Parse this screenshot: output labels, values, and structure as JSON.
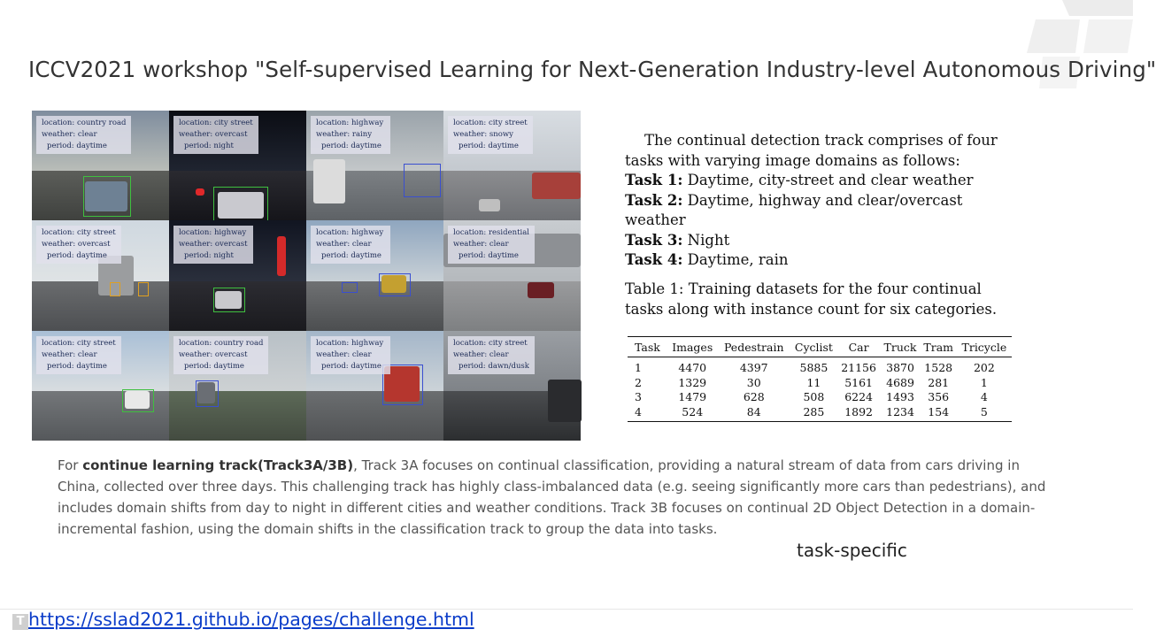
{
  "title": "ICCV2021 workshop \"Self-supervised Learning for Next-Generation Industry-level Autonomous Driving\"",
  "grid_tiles": [
    {
      "location": "location: country road",
      "weather": "weather: clear",
      "period": "period: daytime"
    },
    {
      "location": "location: city street",
      "weather": "weather: overcast",
      "period": "period: night"
    },
    {
      "location": "location: highway",
      "weather": "weather: rainy",
      "period": "period: daytime"
    },
    {
      "location": "location: city street",
      "weather": "weather: snowy",
      "period": "period: daytime"
    },
    {
      "location": "location: city street",
      "weather": "weather: overcast",
      "period": "period: daytime"
    },
    {
      "location": "location: highway",
      "weather": "weather: overcast",
      "period": "period: night"
    },
    {
      "location": "location: highway",
      "weather": "weather: clear",
      "period": "period: daytime"
    },
    {
      "location": "location: residential",
      "weather": "weather: clear",
      "period": "period: daytime"
    },
    {
      "location": "location: city street",
      "weather": "weather: clear",
      "period": "period: daytime"
    },
    {
      "location": "location: country road",
      "weather": "weather: overcast",
      "period": "period: daytime"
    },
    {
      "location": "location: highway",
      "weather": "weather: clear",
      "period": "period: daytime"
    },
    {
      "location": "location: city street",
      "weather": "weather: clear",
      "period": "period: dawn/dusk"
    }
  ],
  "description": {
    "intro": "The continual detection track comprises of four tasks with varying image domains as follows:",
    "tasks": [
      {
        "label": "Task 1:",
        "text": " Daytime, city-street and clear weather"
      },
      {
        "label": "Task 2:",
        "text": " Daytime, highway and clear/overcast weather"
      },
      {
        "label": "Task 3:",
        "text": " Night"
      },
      {
        "label": "Task 4:",
        "text": " Daytime, rain"
      }
    ]
  },
  "table_caption": "Table 1: Training datasets for the four continual tasks along with instance count for six categories.",
  "table": {
    "headers": [
      "Task",
      "Images",
      "Pedestrain",
      "Cyclist",
      "Car",
      "Truck",
      "Tram",
      "Tricycle"
    ],
    "rows": [
      [
        "1",
        "4470",
        "4397",
        "5885",
        "21156",
        "3870",
        "1528",
        "202"
      ],
      [
        "2",
        "1329",
        "30",
        "11",
        "5161",
        "4689",
        "281",
        "1"
      ],
      [
        "3",
        "1479",
        "628",
        "508",
        "6224",
        "1493",
        "356",
        "4"
      ],
      [
        "4",
        "524",
        "84",
        "285",
        "1892",
        "1234",
        "154",
        "5"
      ]
    ]
  },
  "paragraph": {
    "prefix": "For ",
    "bold": "continue learning track(Track3A/3B)",
    "rest": ", Track 3A focuses on continual classification, providing a natural stream of data from cars driving in China, collected over three days. This challenging track has highly class-imbalanced data (e.g. seeing significantly more cars than pedestrians), and includes domain shifts from day to night in different cities and weather conditions. Track 3B focuses on continual 2D Object Detection in a domain-incremental fashion, using the domain shifts in the classification track to group the data into tasks."
  },
  "note": "task-specific",
  "footer": {
    "icon_letter": "T",
    "link": "https://sslad2021.github.io/pages/challenge.html"
  }
}
